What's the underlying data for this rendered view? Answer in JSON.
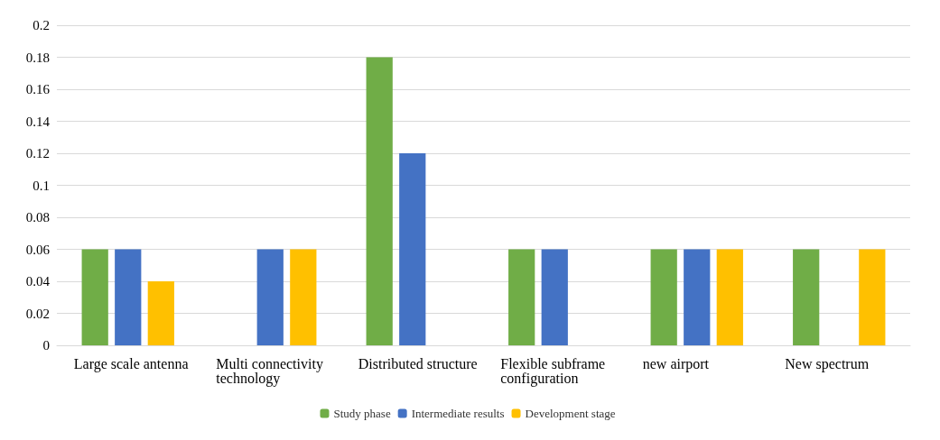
{
  "chart_data": {
    "type": "bar",
    "categories": [
      "Large scale antenna",
      "Multi connectivity technology",
      "Distributed structure",
      "Flexible subframe configuration",
      "new airport",
      "New spectrum"
    ],
    "series": [
      {
        "name": "Study phase",
        "color": "#70ad47",
        "values": [
          0.06,
          0,
          0.18,
          0.06,
          0.06,
          0.06
        ]
      },
      {
        "name": "Intermediate results",
        "color": "#4472c4",
        "values": [
          0.06,
          0.06,
          0.12,
          0.06,
          0.06,
          0
        ]
      },
      {
        "name": "Development stage",
        "color": "#ffc000",
        "values": [
          0.04,
          0.06,
          0,
          0,
          0.06,
          0.06
        ]
      }
    ],
    "ylim": [
      0,
      0.2
    ],
    "yticks": [
      0,
      0.02,
      0.04,
      0.06,
      0.08,
      0.1,
      0.12,
      0.14,
      0.16,
      0.18,
      0.2
    ],
    "grid": "y",
    "legend": "bottom"
  }
}
